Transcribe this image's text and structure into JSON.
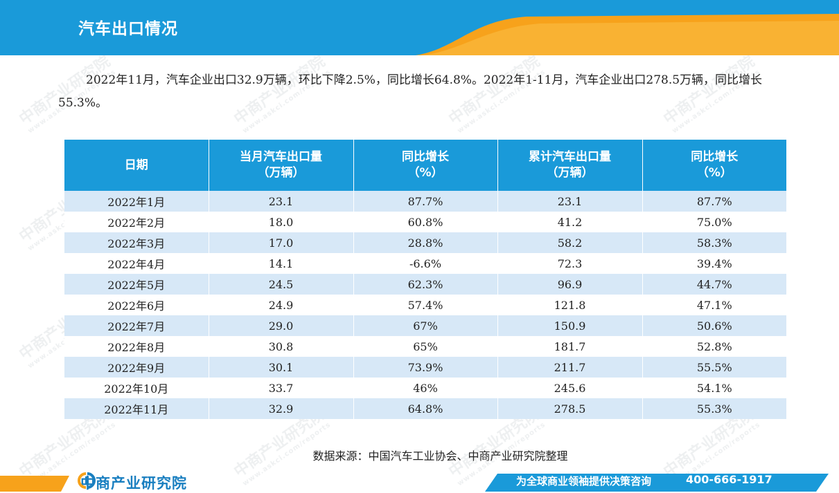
{
  "header": {
    "title": "汽车出口情况",
    "colors": {
      "blue": "#1a9ad9",
      "orange": "#f7a21b"
    }
  },
  "summary": {
    "text": "2022年11月，汽车企业出口32.9万辆，环比下降2.5%，同比增长64.8%。2022年1-11月，汽车企业出口278.5万辆，同比增长55.3%。"
  },
  "table": {
    "headers": [
      {
        "line1": "日期",
        "line2": ""
      },
      {
        "line1": "当月汽车出口量",
        "line2": "（万辆）"
      },
      {
        "line1": "同比增长",
        "line2": "（%）"
      },
      {
        "line1": "累计汽车出口量",
        "line2": "（万辆）"
      },
      {
        "line1": "同比增长",
        "line2": "（%）"
      }
    ],
    "rows": [
      [
        "2022年1月",
        "23.1",
        "87.7%",
        "23.1",
        "87.7%"
      ],
      [
        "2022年2月",
        "18.0",
        "60.8%",
        "41.2",
        "75.0%"
      ],
      [
        "2022年3月",
        "17.0",
        "28.8%",
        "58.2",
        "58.3%"
      ],
      [
        "2022年4月",
        "14.1",
        "-6.6%",
        "72.3",
        "39.4%"
      ],
      [
        "2022年5月",
        "24.5",
        "62.3%",
        "96.9",
        "44.7%"
      ],
      [
        "2022年6月",
        "24.9",
        "57.4%",
        "121.8",
        "47.1%"
      ],
      [
        "2022年7月",
        "29.0",
        "67%",
        "150.9",
        "50.6%"
      ],
      [
        "2022年8月",
        "30.8",
        "65%",
        "181.7",
        "52.8%"
      ],
      [
        "2022年9月",
        "30.1",
        "73.9%",
        "211.7",
        "55.5%"
      ],
      [
        "2022年10月",
        "33.7",
        "46%",
        "245.6",
        "54.1%"
      ],
      [
        "2022年11月",
        "32.9",
        "64.8%",
        "278.5",
        "55.3%"
      ]
    ],
    "colors": {
      "header_bg": "#1a9ad9",
      "stripe_bg": "#d7e8f7"
    }
  },
  "source": {
    "text": "数据来源：中国汽车工业协会、中商产业研究院整理"
  },
  "watermark": {
    "name": "中商产业研究院",
    "url": "www.askci.com/reports"
  },
  "footer": {
    "logo_text": "中商产业研究院",
    "slogan": "为全球商业领袖提供决策咨询",
    "phone": "400-666-1917"
  }
}
